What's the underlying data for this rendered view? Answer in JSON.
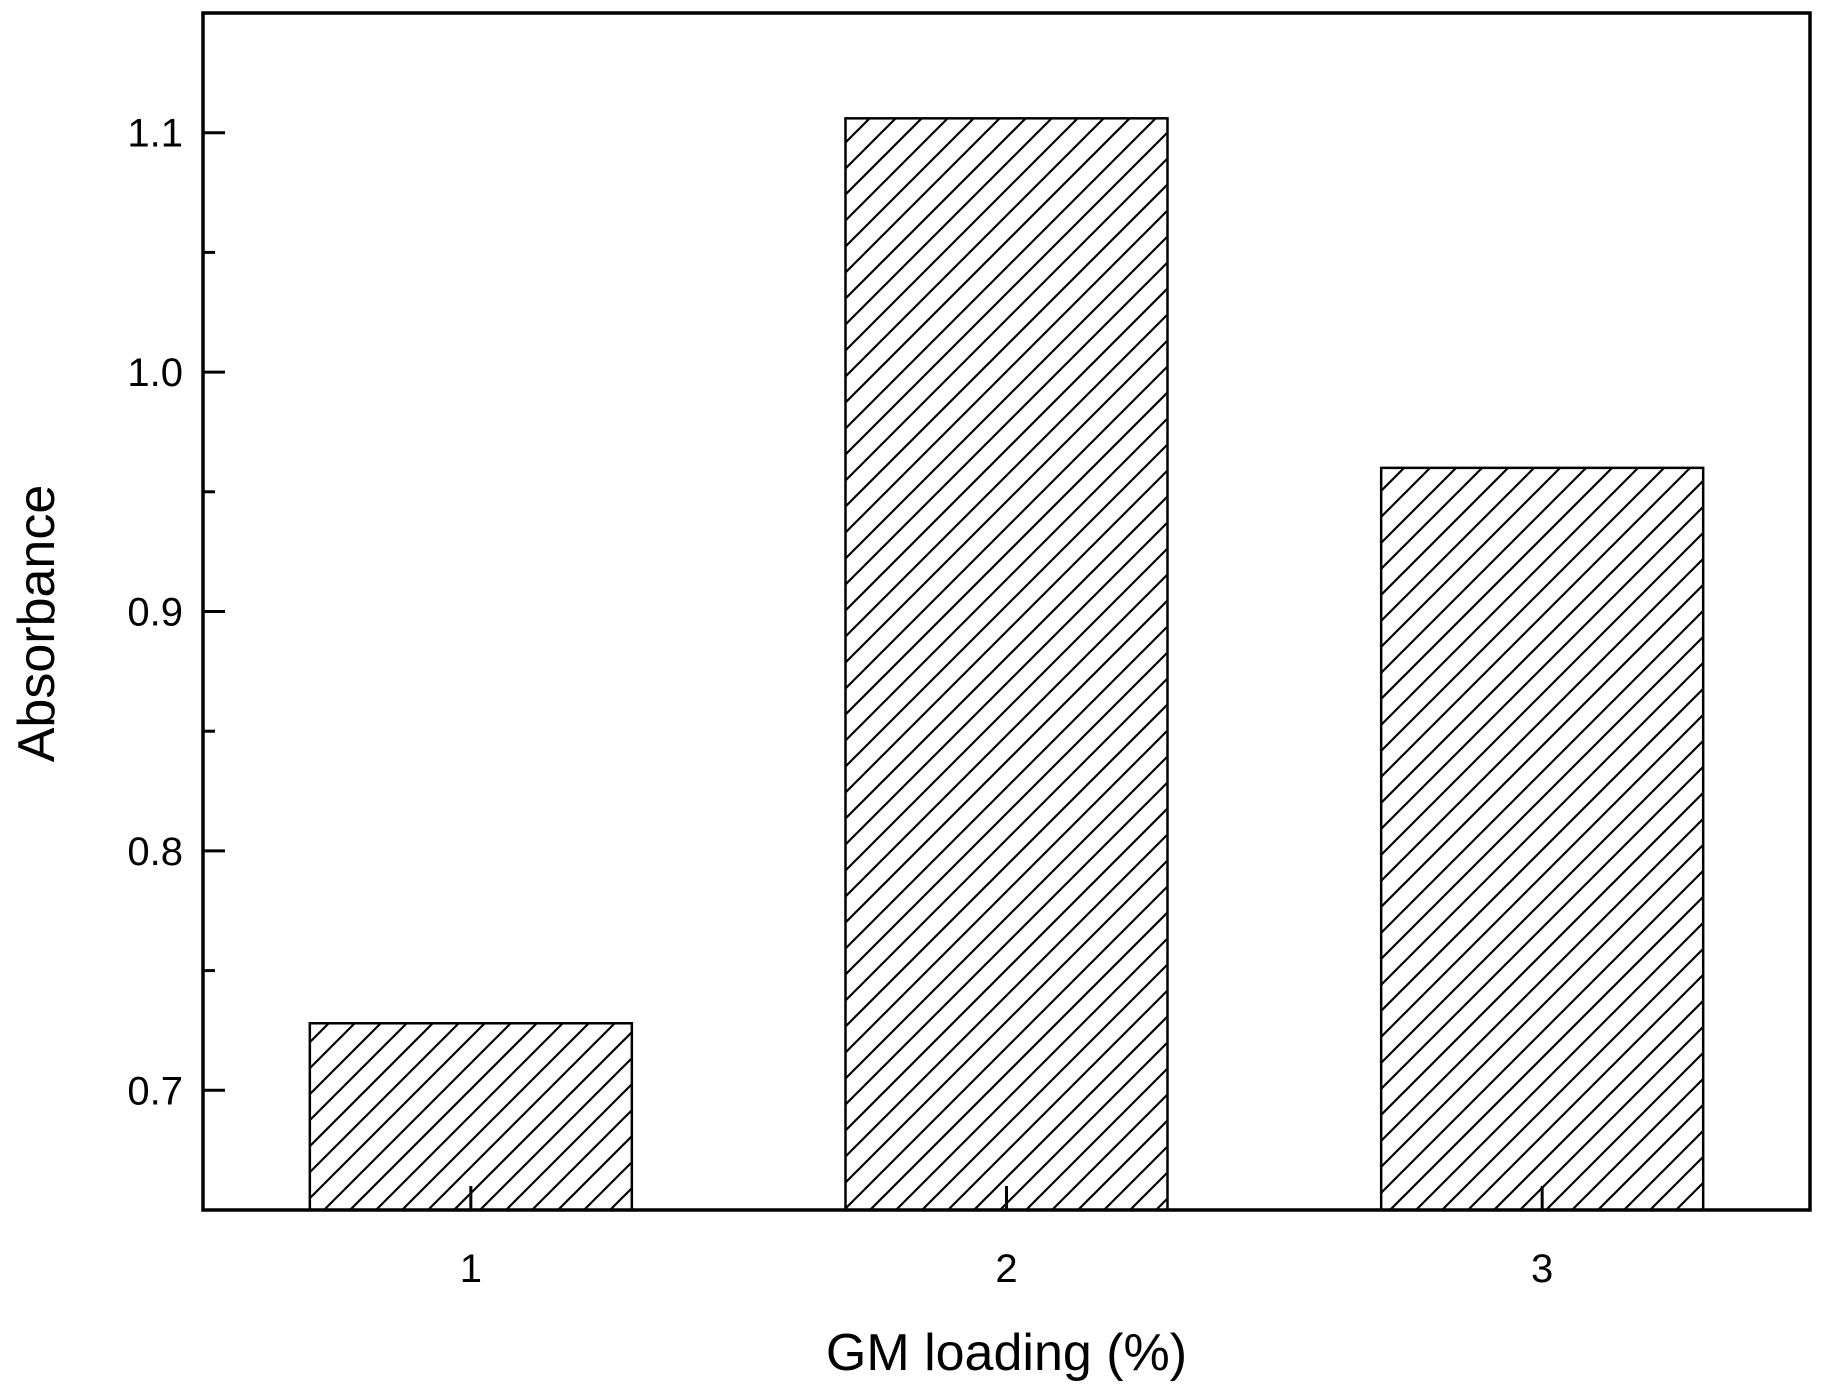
{
  "chart_data": {
    "type": "bar",
    "title": "",
    "xlabel": "GM loading (%)",
    "ylabel": "Absorbance",
    "categories": [
      "1",
      "2",
      "3"
    ],
    "values": [
      0.728,
      1.106,
      0.96
    ],
    "ylim": [
      0.65,
      1.15
    ],
    "y_major_ticks": [
      0.7,
      0.8,
      0.9,
      1.0,
      1.1
    ],
    "y_tick_labels": [
      "0.7",
      "0.8",
      "0.9",
      "1.0",
      "1.1"
    ],
    "y_minor_ticks": [
      0.75,
      0.85,
      0.95,
      1.05
    ],
    "bar_fill": "diagonal hatch",
    "colors": {
      "line": "#000000",
      "background": "#ffffff"
    },
    "grid": false,
    "legend": "none"
  }
}
